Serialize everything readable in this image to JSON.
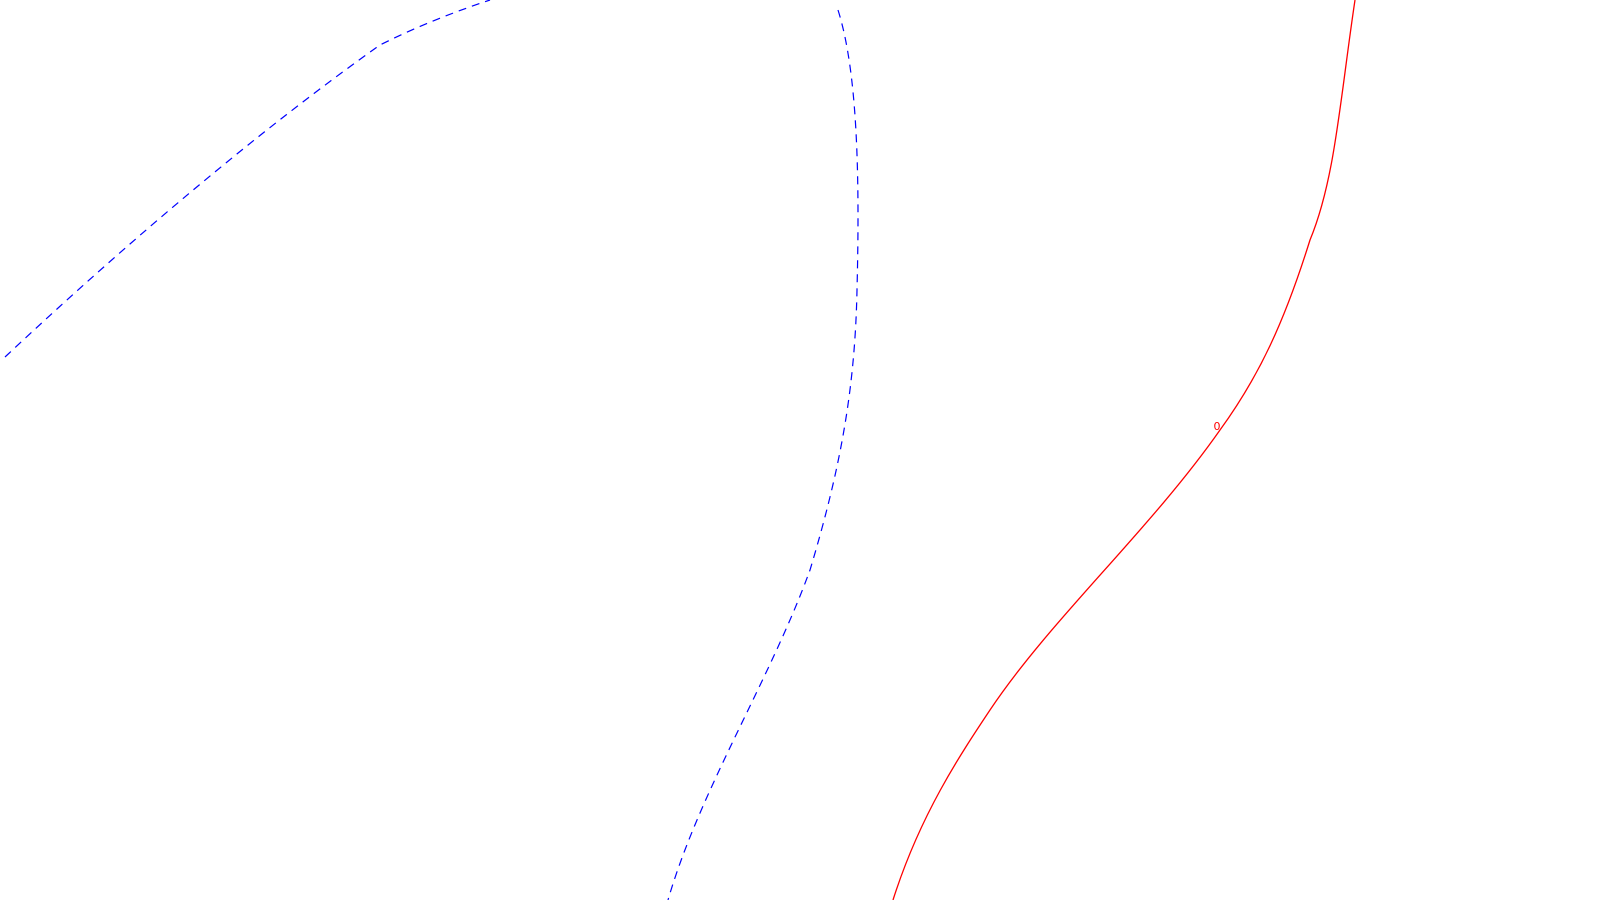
{
  "contours": [
    {
      "id": "blue-dashed-upper-left",
      "line_style": "dashed",
      "color": "#0000ff",
      "label": ""
    },
    {
      "id": "blue-dashed-center",
      "line_style": "dashed",
      "color": "#0000ff",
      "label": ""
    },
    {
      "id": "red-solid-right",
      "line_style": "solid",
      "color": "#ff0000",
      "label": "0"
    }
  ]
}
